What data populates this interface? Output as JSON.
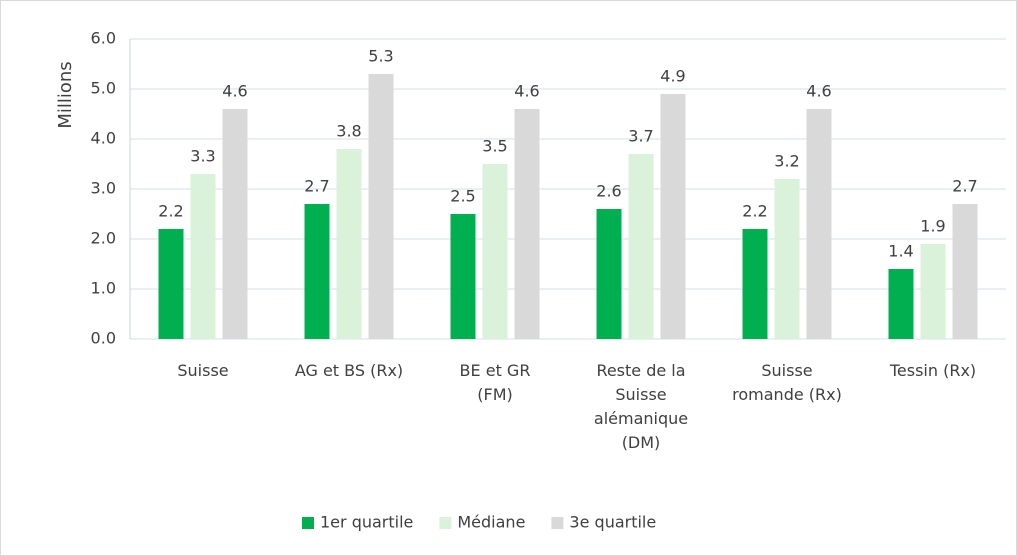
{
  "chart_data": {
    "type": "bar",
    "y_label": "Millions",
    "categories": [
      "Suisse",
      "AG et BS (Rx)",
      "BE et GR\n(FM)",
      "Reste de la\nSuisse\nalémanique\n(DM)",
      "Suisse\nromande (Rx)",
      "Tessin (Rx)"
    ],
    "series": [
      {
        "name": "1er quartile",
        "color": "#00b050",
        "values": [
          2.2,
          2.7,
          2.5,
          2.6,
          2.2,
          1.4
        ]
      },
      {
        "name": "Médiane",
        "color": "#d9f2d9",
        "values": [
          3.3,
          3.8,
          3.5,
          3.7,
          3.2,
          1.9
        ]
      },
      {
        "name": "3e quartile",
        "color": "#d9d9d9",
        "values": [
          4.6,
          5.3,
          4.6,
          4.9,
          4.6,
          2.7
        ]
      }
    ],
    "ylim": [
      0,
      6
    ],
    "yticks": [
      {
        "value": 0,
        "label": "0.0"
      },
      {
        "value": 1,
        "label": "1.0"
      },
      {
        "value": 2,
        "label": "2.0"
      },
      {
        "value": 3,
        "label": "3.0"
      },
      {
        "value": 4,
        "label": "4.0"
      },
      {
        "value": 5,
        "label": "5.0"
      },
      {
        "value": 6,
        "label": "6.0"
      }
    ],
    "grid": true,
    "legend": "bottom"
  }
}
